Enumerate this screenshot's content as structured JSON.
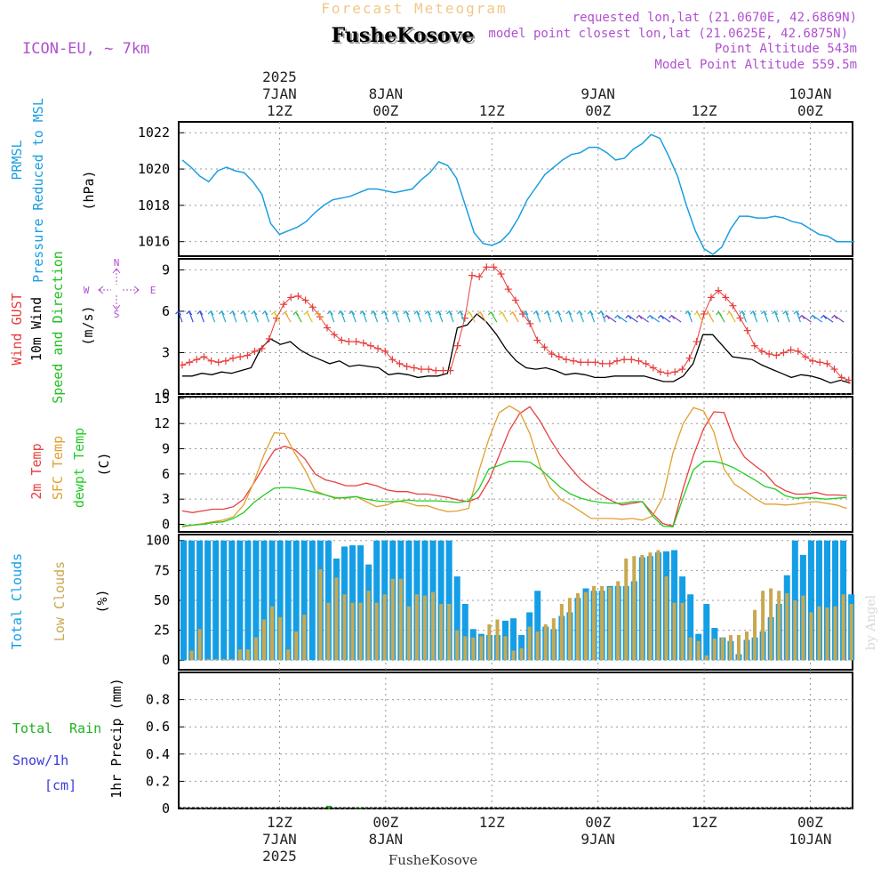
{
  "header": {
    "forecast_title": "Forecast Meteogram",
    "station": "FusheKosove",
    "model": "ICON-EU, ~ 7km",
    "requested": "requested lon,lat (21.0670E, 42.6869N)",
    "closest": "model point closest lon,lat (21.0625E, 42.6875N)",
    "point_alt": "Point Altitude 543m",
    "model_alt": "Model Point Altitude 559.5m",
    "footer_station": "FusheKosove",
    "credit": "by Angel"
  },
  "colors": {
    "pressure": "#1a9ee0",
    "gust": "#e83c3c",
    "wind": "#000000",
    "dir_label": "#20c020",
    "temp2m": "#e84040",
    "sfc": "#e0a030",
    "dewpt": "#22cc22",
    "total_cloud": "#139ee6",
    "low_cloud": "#c8a850",
    "rain": "#22b022",
    "snow": "#3a3ae0",
    "purple": "#b050d0",
    "orange_title": "#f0c888"
  },
  "time_axis": {
    "top": [
      {
        "h": 12,
        "l1": "2025",
        "l2": "7JAN",
        "l3": "12Z"
      },
      {
        "h": 24,
        "l1": "",
        "l2": "8JAN",
        "l3": "00Z"
      },
      {
        "h": 36,
        "l1": "",
        "l2": "",
        "l3": "12Z"
      },
      {
        "h": 48,
        "l1": "",
        "l2": "9JAN",
        "l3": "00Z"
      },
      {
        "h": 60,
        "l1": "",
        "l2": "",
        "l3": "12Z"
      },
      {
        "h": 72,
        "l1": "",
        "l2": "10JAN",
        "l3": "00Z"
      }
    ],
    "bottom": [
      {
        "h": 12,
        "l1": "12Z",
        "l2": "7JAN",
        "l3": "2025"
      },
      {
        "h": 24,
        "l1": "00Z",
        "l2": "8JAN",
        "l3": ""
      },
      {
        "h": 36,
        "l1": "12Z",
        "l2": "",
        "l3": ""
      },
      {
        "h": 48,
        "l1": "00Z",
        "l2": "9JAN",
        "l3": ""
      },
      {
        "h": 60,
        "l1": "12Z",
        "l2": "",
        "l3": ""
      },
      {
        "h": 72,
        "l1": "00Z",
        "l2": "10JAN",
        "l3": ""
      }
    ]
  },
  "panel_labels": {
    "pressure": {
      "l1": "PRMSL",
      "l2": "Pressure Reduced to MSL",
      "unit": "(hPa)"
    },
    "wind": {
      "l1": "Wind GUST",
      "l2": "10m Wind",
      "l3": "Speed and Direction",
      "unit": "(m/s)"
    },
    "compass": {
      "n": "N",
      "s": "S",
      "e": "E",
      "w": "W"
    },
    "temp": {
      "l1": "2m Temp",
      "l2": "SFC Temp",
      "l3": "dewpt Temp",
      "unit": "(C)"
    },
    "cloud": {
      "l1": "Total Clouds",
      "l2": "Low Clouds",
      "unit": "(%)"
    },
    "precip": {
      "l1": "Total",
      "l2": "Rain",
      "l3": "Snow/1h",
      "l4": "[cm]",
      "unit": "1hr Precip (mm)"
    }
  },
  "chart_data": [
    {
      "type": "line",
      "title": "PRMSL Pressure Reduced to MSL",
      "ylabel": "(hPa)",
      "x_unit": "hours from 2025-01-07 01Z (x=11 is 12Z 7JAN)",
      "ylim": [
        1015.2,
        1022.6
      ],
      "yticks": [
        1016,
        1018,
        1020,
        1022
      ],
      "series": [
        {
          "name": "PRMSL",
          "x": [
            0,
            1,
            2,
            3,
            4,
            5,
            6,
            7,
            8,
            9,
            10,
            11,
            12,
            13,
            14,
            15,
            16,
            17,
            18,
            19,
            20,
            21,
            22,
            23,
            24,
            25,
            26,
            27,
            28,
            29,
            30,
            31,
            32,
            33,
            34,
            35,
            36,
            37,
            38,
            39,
            40,
            41,
            42,
            43,
            44,
            45,
            46,
            47,
            48,
            49,
            50,
            51,
            52,
            53,
            54,
            55,
            56,
            57,
            58,
            59,
            60,
            61,
            62,
            63,
            64,
            65,
            66,
            67,
            68,
            69,
            70,
            71,
            72,
            73,
            74,
            75,
            76
          ],
          "values": [
            1020.5,
            1020.1,
            1019.6,
            1019.3,
            1019.9,
            1020.1,
            1019.9,
            1019.8,
            1019.3,
            1018.6,
            1017.0,
            1016.4,
            1016.6,
            1016.8,
            1017.1,
            1017.6,
            1018.0,
            1018.3,
            1018.4,
            1018.5,
            1018.7,
            1018.9,
            1018.9,
            1018.8,
            1018.7,
            1018.8,
            1018.9,
            1019.4,
            1019.8,
            1020.4,
            1020.2,
            1019.5,
            1018.0,
            1016.5,
            1015.9,
            1015.8,
            1016.0,
            1016.5,
            1017.3,
            1018.3,
            1019.0,
            1019.7,
            1020.1,
            1020.5,
            1020.8,
            1020.9,
            1021.2,
            1021.2,
            1020.9,
            1020.5,
            1020.6,
            1021.1,
            1021.4,
            1021.9,
            1021.7,
            1020.7,
            1019.6,
            1018.0,
            1016.6,
            1015.6,
            1015.3,
            1015.7,
            1016.7,
            1017.4,
            1017.4,
            1017.3,
            1017.3,
            1017.4,
            1017.3,
            1017.1,
            1017.0,
            1016.7,
            1016.4,
            1016.3,
            1016.0,
            1016.0,
            1016.0
          ]
        }
      ]
    },
    {
      "type": "line",
      "title": "Wind GUST, 10m Wind Speed and Direction",
      "ylabel": "(m/s)",
      "ylim": [
        0,
        9.8
      ],
      "yticks": [
        0,
        3,
        6,
        9
      ],
      "series": [
        {
          "name": "Wind GUST",
          "values": [
            2.1,
            2.3,
            2.5,
            2.7,
            2.4,
            2.3,
            2.4,
            2.6,
            2.7,
            2.8,
            3.1,
            3.3,
            4.0,
            5.5,
            6.5,
            7.0,
            7.1,
            6.8,
            6.3,
            5.6,
            4.8,
            4.3,
            3.9,
            3.8,
            3.8,
            3.7,
            3.5,
            3.3,
            3.1,
            2.5,
            2.2,
            2.0,
            1.9,
            1.8,
            1.8,
            1.7,
            1.7,
            1.7,
            3.5,
            5.5,
            8.6,
            8.5,
            9.2,
            9.2,
            8.7,
            7.6,
            6.8,
            5.8,
            5.1,
            3.9,
            3.4,
            2.9,
            2.7,
            2.5,
            2.4,
            2.3,
            2.3,
            2.3,
            2.2,
            2.2,
            2.4,
            2.5,
            2.5,
            2.4,
            2.2,
            1.9,
            1.6,
            1.5,
            1.6,
            1.8,
            2.6,
            3.8,
            5.8,
            7.0,
            7.5,
            7.0,
            6.4,
            5.5,
            4.6,
            3.5,
            3.1,
            2.9,
            2.8,
            3.0,
            3.2,
            3.1,
            2.7,
            2.4,
            2.3,
            2.2,
            1.8,
            1.2,
            1.0
          ],
          "x_note": "gust sampled every 0.8 h from x=0"
        },
        {
          "name": "10m Wind",
          "values": [
            1.3,
            1.3,
            1.5,
            1.4,
            1.6,
            1.5,
            1.7,
            1.9,
            3.3,
            4.0,
            3.6,
            3.8,
            3.2,
            2.8,
            2.5,
            2.2,
            2.4,
            2.0,
            2.1,
            2.0,
            1.9,
            1.4,
            1.5,
            1.4,
            1.2,
            1.3,
            1.3,
            1.5,
            4.8,
            5.0,
            5.8,
            5.2,
            4.3,
            3.2,
            2.4,
            1.9,
            1.8,
            1.9,
            1.7,
            1.4,
            1.5,
            1.4,
            1.2,
            1.2,
            1.3,
            1.3,
            1.3,
            1.3,
            1.1,
            0.9,
            0.9,
            1.3,
            2.2,
            4.3,
            4.3,
            3.5,
            2.7,
            2.6,
            2.5,
            2.1,
            1.8,
            1.5,
            1.2,
            1.4,
            1.3,
            1.1,
            0.8,
            1.0,
            0.8
          ],
          "x_note": "wind sampled every 1.1 h from x=0"
        },
        {
          "name": "Direction arrows",
          "values": [
            5.6
          ],
          "note": "wind barbs at ~5.6 m/s level, mostly from S/SW"
        }
      ]
    },
    {
      "type": "line",
      "title": "2m Temp, SFC Temp, dewpt Temp",
      "ylabel": "(C)",
      "ylim": [
        -0.9,
        15.2
      ],
      "yticks": [
        0,
        3,
        6,
        9,
        12,
        15
      ],
      "series": [
        {
          "name": "2m Temp",
          "values": [
            1.6,
            1.4,
            1.6,
            1.8,
            1.8,
            2.1,
            3.0,
            4.9,
            6.9,
            8.8,
            9.3,
            8.9,
            7.8,
            6.0,
            5.3,
            5.0,
            4.6,
            4.6,
            4.9,
            4.6,
            4.1,
            3.9,
            3.9,
            3.6,
            3.6,
            3.4,
            3.2,
            2.9,
            2.7,
            3.2,
            5.2,
            8.2,
            11.2,
            13.2,
            14.0,
            12.3,
            10.1,
            8.2,
            6.7,
            5.3,
            4.3,
            3.5,
            2.8,
            2.3,
            2.5,
            2.7,
            1.3,
            0.1,
            -0.2,
            4.3,
            8.2,
            11.4,
            13.4,
            13.3,
            10.0,
            8.0,
            7.0,
            6.1,
            4.7,
            4.0,
            3.6,
            3.6,
            3.8,
            3.5,
            3.5,
            3.4,
            3.2
          ]
        },
        {
          "name": "SFC Temp",
          "values": [
            -0.3,
            -0.1,
            0.1,
            0.3,
            0.5,
            0.9,
            2.3,
            5.0,
            8.3,
            10.9,
            10.8,
            8.5,
            6.5,
            4.0,
            3.5,
            3.2,
            3.1,
            3.3,
            2.7,
            2.1,
            2.3,
            2.8,
            2.6,
            2.2,
            2.2,
            1.8,
            1.5,
            1.6,
            1.9,
            6.3,
            10.2,
            13.3,
            14.1,
            13.4,
            10.8,
            6.9,
            4.4,
            3.0,
            2.3,
            1.5,
            0.7,
            0.7,
            0.7,
            0.6,
            0.7,
            0.5,
            1.0,
            3.2,
            8.5,
            12.0,
            13.9,
            13.5,
            11.0,
            6.6,
            4.8,
            4.0,
            3.1,
            2.4,
            2.4,
            2.3,
            2.4,
            2.6,
            2.7,
            2.5,
            2.3,
            1.9,
            0.6
          ]
        },
        {
          "name": "dewpt Temp",
          "values": [
            -0.2,
            -0.1,
            0.0,
            0.2,
            0.3,
            0.7,
            1.4,
            2.6,
            3.5,
            4.3,
            4.4,
            4.3,
            4.1,
            3.8,
            3.5,
            3.1,
            3.2,
            3.3,
            3.0,
            2.8,
            2.7,
            2.7,
            2.9,
            2.8,
            2.8,
            2.8,
            2.7,
            2.6,
            2.8,
            4.2,
            6.6,
            7.0,
            7.5,
            7.5,
            7.4,
            6.6,
            5.5,
            4.4,
            3.6,
            3.1,
            2.8,
            2.6,
            2.5,
            2.5,
            2.7,
            2.7,
            1.0,
            -0.2,
            -0.3,
            3.2,
            6.5,
            7.5,
            7.5,
            7.2,
            6.7,
            6.0,
            5.3,
            4.5,
            4.2,
            3.4,
            3.1,
            3.2,
            3.1,
            3.0,
            3.1,
            3.2,
            3.1
          ]
        }
      ]
    },
    {
      "type": "bar",
      "title": "Total Clouds / Low Clouds",
      "ylabel": "(%)",
      "ylim": [
        -8,
        105
      ],
      "yticks": [
        0,
        25,
        50,
        75,
        100
      ],
      "series": [
        {
          "name": "Total Clouds",
          "values": [
            100,
            100,
            100,
            100,
            100,
            100,
            100,
            100,
            100,
            100,
            100,
            100,
            100,
            100,
            100,
            100,
            100,
            100,
            100,
            85,
            95,
            96,
            96,
            80,
            100,
            100,
            100,
            100,
            100,
            100,
            100,
            100,
            100,
            100,
            70,
            47,
            26,
            22,
            21,
            21,
            33,
            35,
            21,
            40,
            58,
            28,
            26,
            37,
            40,
            52,
            60,
            58,
            58,
            62,
            62,
            62,
            66,
            86,
            87,
            90,
            91,
            92,
            70,
            55,
            22,
            47,
            27,
            19,
            16,
            5,
            17,
            19,
            24,
            36,
            47,
            71,
            100,
            88,
            100,
            100,
            100,
            100,
            100,
            55
          ]
        },
        {
          "name": "Low Clouds",
          "values": [
            0,
            8,
            26,
            1,
            1,
            1,
            1,
            9,
            9,
            19,
            34,
            45,
            36,
            9,
            24,
            38,
            0,
            76,
            48,
            69,
            55,
            48,
            48,
            58,
            48,
            55,
            68,
            68,
            45,
            55,
            54,
            57,
            47,
            47,
            25,
            20,
            19,
            20,
            30,
            34,
            20,
            8,
            10,
            28,
            24,
            30,
            35,
            47,
            52,
            56,
            57,
            62,
            62,
            61,
            66,
            85,
            87,
            88,
            90,
            92,
            70,
            48,
            48,
            19,
            16,
            4,
            18,
            19,
            21,
            21,
            24,
            42,
            58,
            60,
            58,
            56,
            50,
            54,
            40,
            45,
            44,
            45,
            55,
            47
          ]
        }
      ]
    },
    {
      "type": "bar",
      "title": "Total Rain / Snow 1h",
      "ylabel": "1hr Precip (mm)",
      "ylim": [
        0,
        1.0
      ],
      "yticks": [
        0,
        0.2,
        0.4,
        0.6,
        0.8
      ],
      "series": [
        {
          "name": "Total Rain",
          "x": [
            14,
            17
          ],
          "values": [
            0.02,
            0.005
          ]
        },
        {
          "name": "Snow/1h",
          "values": []
        }
      ]
    }
  ]
}
